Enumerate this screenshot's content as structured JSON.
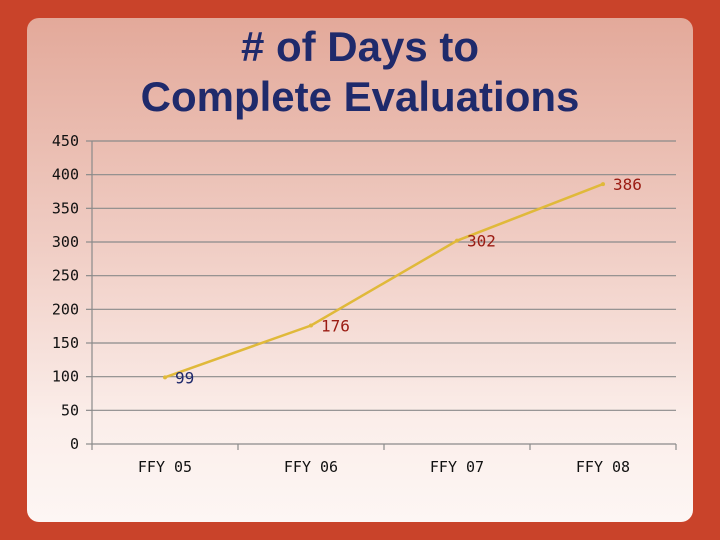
{
  "chart_data": {
    "type": "line",
    "title_lines": [
      "# of Days to",
      "Complete Evaluations"
    ],
    "categories": [
      "FFY 05",
      "FFY 06",
      "FFY 07",
      "FFY 08"
    ],
    "series": [
      {
        "values": [
          99,
          176,
          302,
          386
        ],
        "data_labels": [
          "99",
          "176",
          "302",
          "386"
        ],
        "label_colors": [
          "#1f2a6b",
          "#9a1b12",
          "#9a1b12",
          "#9a1b12"
        ]
      }
    ],
    "y_ticks": [
      "0",
      "50",
      "100",
      "150",
      "200",
      "250",
      "300",
      "350",
      "400",
      "450"
    ],
    "ylim": [
      0,
      450
    ],
    "grid": true,
    "line_color": "#e0b93a"
  }
}
